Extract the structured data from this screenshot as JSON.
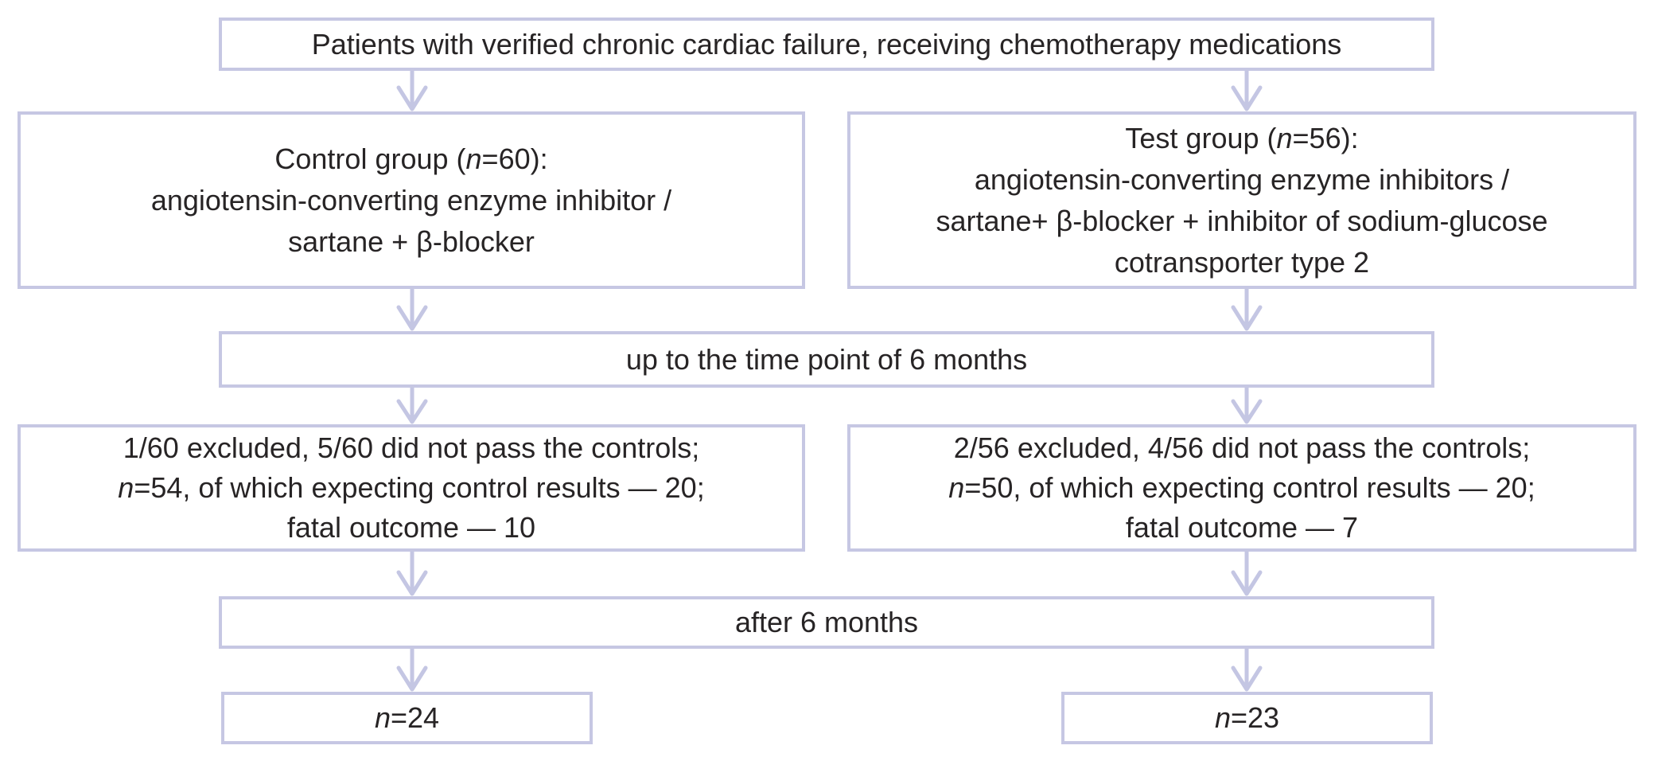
{
  "palette": {
    "box_border": "#c6c7e3",
    "arrow": "#c4c6e3",
    "text": "#272425",
    "background": "#ffffff"
  },
  "icons": {
    "connector": "down-arrow-icon"
  },
  "flowchart": {
    "patients": {
      "lines": [
        [
          {
            "t": "Patients with verified chronic cardiac failure, receiving chemotherapy medications"
          }
        ]
      ]
    },
    "control_group": {
      "lines": [
        [
          {
            "t": "Control group ("
          },
          {
            "t": "n",
            "i": true
          },
          {
            "t": "=60):"
          }
        ],
        [
          {
            "t": "angiotensin-converting enzyme inhibitor /"
          }
        ],
        [
          {
            "t": "sartane + β-blocker"
          }
        ]
      ]
    },
    "test_group": {
      "lines": [
        [
          {
            "t": "Test group ("
          },
          {
            "t": "n",
            "i": true
          },
          {
            "t": "=56):"
          }
        ],
        [
          {
            "t": "angiotensin-converting enzyme inhibitors /"
          }
        ],
        [
          {
            "t": "sartane+ β-blocker + inhibitor of sodium-glucose"
          }
        ],
        [
          {
            "t": "cotransporter type 2"
          }
        ]
      ]
    },
    "timepoint": {
      "lines": [
        [
          {
            "t": "up to the time point of 6 months"
          }
        ]
      ]
    },
    "control_results": {
      "lines": [
        [
          {
            "t": "1/60 excluded, 5/60 did not pass the controls;"
          }
        ],
        [
          {
            "t": "n",
            "i": true
          },
          {
            "t": "=54, of which expecting control results — 20;"
          }
        ],
        [
          {
            "t": "fatal outcome — 10"
          }
        ]
      ]
    },
    "test_results": {
      "lines": [
        [
          {
            "t": "2/56 excluded, 4/56 did not pass the controls;"
          }
        ],
        [
          {
            "t": "n",
            "i": true
          },
          {
            "t": "=50, of which expecting control results — 20;"
          }
        ],
        [
          {
            "t": "fatal outcome — 7"
          }
        ]
      ]
    },
    "after": {
      "lines": [
        [
          {
            "t": "after 6 months"
          }
        ]
      ]
    },
    "control_final": {
      "lines": [
        [
          {
            "t": "n",
            "i": true
          },
          {
            "t": "=24"
          }
        ]
      ]
    },
    "test_final": {
      "lines": [
        [
          {
            "t": "n",
            "i": true
          },
          {
            "t": "=23"
          }
        ]
      ]
    }
  }
}
